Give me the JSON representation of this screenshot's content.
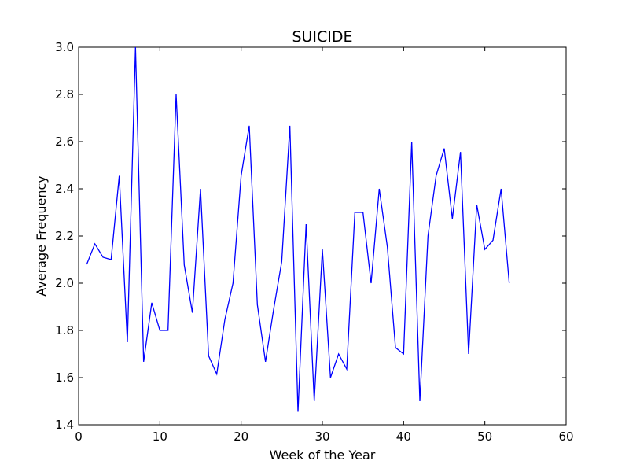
{
  "chart_data": {
    "type": "line",
    "title": "SUICIDE",
    "xlabel": "Week of the Year",
    "ylabel": "Average Frequency",
    "xlim": [
      0,
      60
    ],
    "ylim": [
      1.4,
      3.0
    ],
    "xticks": [
      0,
      10,
      20,
      30,
      40,
      50,
      60
    ],
    "xtick_labels": [
      "0",
      "10",
      "20",
      "30",
      "40",
      "50",
      "60"
    ],
    "yticks": [
      1.4,
      1.6,
      1.8,
      2.0,
      2.2,
      2.4,
      2.6,
      2.8,
      3.0
    ],
    "ytick_labels": [
      "1.4",
      "1.6",
      "1.8",
      "2.0",
      "2.2",
      "2.4",
      "2.6",
      "2.8",
      "3.0"
    ],
    "grid": false,
    "series": [
      {
        "color": "#0000ff",
        "x": [
          1,
          2,
          3,
          4,
          5,
          6,
          7,
          8,
          9,
          10,
          11,
          12,
          13,
          14,
          15,
          16,
          17,
          18,
          19,
          20,
          21,
          22,
          23,
          24,
          25,
          26,
          27,
          28,
          29,
          30,
          31,
          32,
          33,
          34,
          35,
          36,
          37,
          38,
          39,
          40,
          41,
          42,
          43,
          44,
          45,
          46,
          47,
          48,
          49,
          50,
          51,
          52,
          53
        ],
        "y": [
          2.08,
          2.167,
          2.11,
          2.1,
          2.455,
          1.75,
          3.0,
          1.667,
          1.917,
          1.8,
          1.8,
          2.8,
          2.077,
          1.875,
          2.4,
          1.692,
          1.615,
          1.846,
          2.0,
          2.455,
          2.667,
          1.909,
          1.667,
          1.889,
          2.091,
          2.667,
          1.455,
          2.25,
          1.5,
          2.143,
          1.6,
          1.7,
          1.636,
          2.3,
          2.3,
          2.0,
          2.4,
          2.154,
          1.727,
          1.7,
          2.6,
          1.5,
          2.2,
          2.455,
          2.571,
          2.273,
          2.556,
          1.7,
          2.333,
          2.143,
          2.182,
          2.4,
          2.0
        ]
      }
    ]
  }
}
